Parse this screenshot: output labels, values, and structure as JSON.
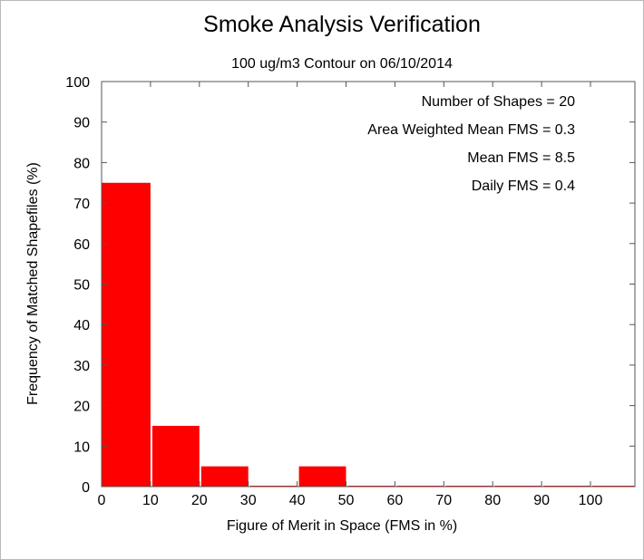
{
  "chart_data": {
    "type": "bar",
    "title": "Smoke Analysis Verification",
    "subtitle": "100 ug/m3 Contour on 06/10/2014",
    "xlabel": "Figure of Merit in Space (FMS in %)",
    "ylabel": "Frequency of Matched Shapefiles (%)",
    "xlim": [
      0,
      110
    ],
    "ylim": [
      0,
      100
    ],
    "x_ticks": [
      "0",
      "10",
      "20",
      "30",
      "40",
      "50",
      "60",
      "70",
      "80",
      "90",
      "100"
    ],
    "y_ticks": [
      "0",
      "10",
      "20",
      "30",
      "40",
      "50",
      "60",
      "70",
      "80",
      "90",
      "100"
    ],
    "bins": [
      {
        "start": 0,
        "end": 10,
        "value": 75
      },
      {
        "start": 10,
        "end": 20,
        "value": 15
      },
      {
        "start": 20,
        "end": 30,
        "value": 5
      },
      {
        "start": 30,
        "end": 40,
        "value": 0
      },
      {
        "start": 40,
        "end": 50,
        "value": 5
      },
      {
        "start": 50,
        "end": 60,
        "value": 0
      },
      {
        "start": 60,
        "end": 70,
        "value": 0
      },
      {
        "start": 70,
        "end": 80,
        "value": 0
      },
      {
        "start": 80,
        "end": 90,
        "value": 0
      },
      {
        "start": 90,
        "end": 100,
        "value": 0
      },
      {
        "start": 100,
        "end": 110,
        "value": 0
      }
    ],
    "bar_color": "#ff0000",
    "grid": false,
    "annotations": [
      "Number of Shapes = 20",
      "Area Weighted Mean FMS = 0.3",
      "Mean FMS = 8.5",
      "Daily FMS = 0.4"
    ]
  }
}
